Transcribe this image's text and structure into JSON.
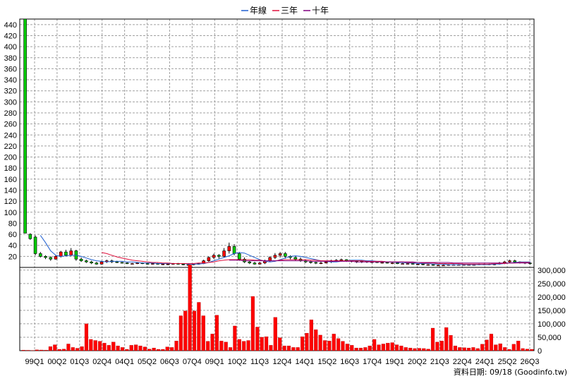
{
  "chart_data": [
    {
      "type": "candlestick",
      "title": "",
      "legend": {
        "placement": "top-center",
        "entries": [
          {
            "label": "年線",
            "color": "#1f5fd0"
          },
          {
            "label": "三年",
            "color": "#e0103c"
          },
          {
            "label": "十年",
            "color": "#800080"
          }
        ]
      },
      "x_ticks": [
        "99Q1",
        "00Q2",
        "01Q3",
        "02Q4",
        "04Q1",
        "05Q2",
        "06Q3",
        "07Q4",
        "09Q1",
        "10Q2",
        "11Q3",
        "12Q4",
        "14Q1",
        "15Q2",
        "16Q3",
        "17Q4",
        "19Q1",
        "20Q2",
        "21Q3",
        "22Q4",
        "24Q1",
        "25Q2",
        "26Q3"
      ],
      "y_ticks": [
        20,
        40,
        60,
        80,
        100,
        120,
        140,
        160,
        180,
        200,
        220,
        240,
        260,
        280,
        300,
        320,
        340,
        360,
        380,
        400,
        420,
        440
      ],
      "ylim": [
        0,
        450
      ],
      "grid": true,
      "colors": {
        "up": "#ff0000",
        "down": "#00cc00",
        "grid": "#a0a0a0"
      },
      "candles": [
        [
          450,
          62,
          450,
          62
        ],
        [
          60,
          52,
          62,
          50
        ],
        [
          55,
          25,
          58,
          22
        ],
        [
          25,
          20,
          28,
          18
        ],
        [
          20,
          18,
          22,
          15
        ],
        [
          18,
          15,
          20,
          12
        ],
        [
          15,
          20,
          22,
          14
        ],
        [
          20,
          28,
          30,
          18
        ],
        [
          28,
          22,
          32,
          20
        ],
        [
          22,
          30,
          35,
          20
        ],
        [
          30,
          15,
          32,
          12
        ],
        [
          15,
          12,
          18,
          10
        ],
        [
          12,
          10,
          14,
          8
        ],
        [
          10,
          8,
          12,
          6
        ],
        [
          8,
          6,
          10,
          5
        ],
        [
          6,
          10,
          12,
          5
        ],
        [
          10,
          12,
          14,
          8
        ],
        [
          12,
          10,
          14,
          8
        ],
        [
          10,
          9,
          12,
          8
        ],
        [
          9,
          8,
          10,
          7
        ],
        [
          8,
          7,
          9,
          6
        ],
        [
          7,
          7,
          8,
          6
        ],
        [
          7,
          8,
          9,
          6
        ],
        [
          8,
          7,
          9,
          6
        ],
        [
          7,
          6,
          8,
          5
        ],
        [
          6,
          7,
          8,
          5
        ],
        [
          7,
          6,
          8,
          5
        ],
        [
          6,
          6,
          7,
          5
        ],
        [
          6,
          6,
          7,
          5
        ],
        [
          6,
          7,
          8,
          5
        ],
        [
          7,
          6,
          8,
          5
        ],
        [
          6,
          5,
          7,
          4
        ],
        [
          5,
          5,
          6,
          4
        ],
        [
          5,
          6,
          7,
          4
        ],
        [
          6,
          7,
          8,
          5
        ],
        [
          7,
          12,
          14,
          6
        ],
        [
          12,
          18,
          20,
          10
        ],
        [
          18,
          22,
          25,
          15
        ],
        [
          22,
          20,
          24,
          16
        ],
        [
          20,
          30,
          35,
          18
        ],
        [
          30,
          38,
          45,
          25
        ],
        [
          38,
          25,
          42,
          22
        ],
        [
          25,
          15,
          28,
          12
        ],
        [
          15,
          10,
          18,
          8
        ],
        [
          10,
          8,
          12,
          6
        ],
        [
          8,
          6,
          10,
          5
        ],
        [
          6,
          8,
          10,
          5
        ],
        [
          8,
          12,
          14,
          6
        ],
        [
          12,
          18,
          20,
          10
        ],
        [
          18,
          22,
          26,
          15
        ],
        [
          22,
          25,
          28,
          18
        ],
        [
          25,
          20,
          28,
          16
        ],
        [
          20,
          18,
          22,
          14
        ],
        [
          18,
          15,
          20,
          12
        ],
        [
          15,
          12,
          18,
          10
        ],
        [
          12,
          10,
          14,
          8
        ],
        [
          10,
          9,
          12,
          7
        ],
        [
          9,
          8,
          10,
          6
        ],
        [
          8,
          8,
          10,
          6
        ],
        [
          8,
          10,
          12,
          7
        ],
        [
          10,
          12,
          14,
          8
        ],
        [
          12,
          13,
          15,
          10
        ],
        [
          13,
          14,
          16,
          11
        ],
        [
          14,
          12,
          15,
          10
        ],
        [
          12,
          11,
          13,
          9
        ],
        [
          11,
          10,
          12,
          8
        ],
        [
          10,
          11,
          12,
          8
        ],
        [
          11,
          10,
          12,
          8
        ],
        [
          10,
          10,
          11,
          8
        ],
        [
          10,
          9,
          11,
          8
        ],
        [
          9,
          9,
          10,
          7
        ],
        [
          9,
          8,
          10,
          7
        ],
        [
          8,
          8,
          9,
          6
        ],
        [
          8,
          7,
          9,
          6
        ],
        [
          7,
          7,
          8,
          6
        ],
        [
          7,
          7,
          8,
          6
        ],
        [
          7,
          6,
          8,
          5
        ],
        [
          6,
          6,
          7,
          5
        ],
        [
          6,
          5,
          7,
          4
        ],
        [
          5,
          5,
          6,
          4
        ],
        [
          5,
          4,
          6,
          3
        ],
        [
          4,
          4,
          5,
          3
        ],
        [
          4,
          4,
          5,
          3
        ],
        [
          4,
          5,
          6,
          3
        ],
        [
          5,
          5,
          6,
          4
        ],
        [
          5,
          5,
          6,
          4
        ],
        [
          5,
          5,
          6,
          4
        ],
        [
          5,
          5,
          6,
          4
        ],
        [
          5,
          5,
          6,
          4
        ],
        [
          5,
          6,
          7,
          4
        ],
        [
          6,
          6,
          7,
          4
        ],
        [
          6,
          5,
          7,
          4
        ],
        [
          5,
          6,
          7,
          4
        ],
        [
          6,
          8,
          10,
          5
        ],
        [
          8,
          10,
          12,
          6
        ],
        [
          10,
          12,
          14,
          8
        ],
        [
          12,
          10,
          14,
          8
        ],
        [
          10,
          9,
          11,
          7
        ],
        [
          9,
          8,
          10,
          6
        ],
        [
          8,
          7,
          9,
          5
        ]
      ],
      "ma": {
        "年線": [
          null,
          null,
          null,
          58,
          45,
          30,
          22,
          20,
          21,
          22,
          22,
          20,
          17,
          14,
          12,
          11,
          10,
          11,
          11,
          11,
          10,
          10,
          9,
          8,
          8,
          8,
          7,
          7,
          7,
          7,
          7,
          7,
          6,
          6,
          6,
          7,
          9,
          12,
          15,
          18,
          21,
          25,
          27,
          26,
          22,
          18,
          14,
          11,
          10,
          11,
          14,
          17,
          20,
          21,
          20,
          18,
          16,
          14,
          12,
          11,
          10,
          10,
          11,
          12,
          13,
          13,
          13,
          12,
          12,
          11,
          11,
          10,
          10,
          9,
          9,
          8,
          8,
          7,
          7,
          7,
          6,
          6,
          6,
          5,
          5,
          5,
          5,
          5,
          5,
          5,
          5,
          5,
          6,
          6,
          7,
          8,
          9,
          10,
          10,
          10,
          9
        ],
        "三年": [
          null,
          null,
          null,
          null,
          null,
          null,
          null,
          null,
          null,
          null,
          null,
          null,
          null,
          null,
          null,
          27,
          25,
          22,
          19,
          17,
          15,
          13,
          12,
          11,
          10,
          9,
          9,
          8,
          8,
          7,
          7,
          7,
          7,
          7,
          8,
          8,
          9,
          10,
          12,
          13,
          14,
          14,
          14,
          14,
          14,
          13,
          13,
          12,
          12,
          12,
          13,
          14,
          14,
          14,
          14,
          14,
          13,
          13,
          12,
          12,
          12,
          12,
          12,
          12,
          12,
          12,
          12,
          11,
          11,
          11,
          11,
          10,
          10,
          10,
          10,
          9,
          9,
          9,
          8,
          8,
          8,
          7,
          7,
          7,
          7,
          7,
          6,
          6,
          6,
          6,
          6,
          6,
          7,
          7,
          7,
          8,
          8,
          9,
          9,
          9
        ],
        "十年": [
          null,
          null,
          null,
          null,
          null,
          null,
          null,
          null,
          null,
          null,
          null,
          null,
          null,
          null,
          null,
          null,
          null,
          null,
          null,
          null,
          null,
          null,
          null,
          null,
          null,
          null,
          null,
          null,
          null,
          null,
          null,
          null,
          null,
          null,
          null,
          null,
          null,
          null,
          null,
          null,
          13,
          13,
          13,
          12,
          12,
          12,
          12,
          12,
          12,
          12,
          12,
          12,
          12,
          12,
          12,
          12,
          11,
          11,
          11,
          11,
          11,
          11,
          11,
          11,
          11,
          10,
          10,
          10,
          10,
          10,
          10,
          10,
          10,
          10,
          10,
          10,
          10,
          9,
          9,
          9,
          9,
          9,
          9,
          9,
          8,
          8,
          8,
          8,
          8,
          8,
          8,
          8,
          8,
          8,
          8,
          8,
          8,
          8,
          8,
          8
        ]
      }
    },
    {
      "type": "bar",
      "title": "",
      "y_ticks_labels": [
        "0",
        "50,000",
        "100,000",
        "150,000",
        "200,000",
        "250,000",
        "300,000"
      ],
      "ylim": [
        0,
        310000
      ],
      "color": "#ff0000",
      "values": [
        2000,
        1500,
        1000,
        3000,
        2500,
        2000,
        15000,
        22000,
        5000,
        6000,
        25000,
        12000,
        9000,
        15000,
        100000,
        42000,
        38000,
        35000,
        28000,
        20000,
        32000,
        18000,
        12000,
        5000,
        20000,
        22000,
        18000,
        14000,
        6000,
        10000,
        5000,
        5000,
        14000,
        12000,
        36000,
        130000,
        148000,
        320000,
        148000,
        180000,
        130000,
        35000,
        62000,
        132000,
        36000,
        32000,
        12000,
        92000,
        42000,
        35000,
        38000,
        202000,
        88000,
        50000,
        52000,
        20000,
        124000,
        48000,
        18000,
        18000,
        12000,
        12000,
        52000,
        65000,
        115000,
        78000,
        58000,
        38000,
        36000,
        62000,
        45000,
        35000,
        25000,
        20000,
        10000,
        10000,
        12000,
        18000,
        42000,
        22000,
        25000,
        28000,
        30000,
        22000,
        18000,
        12000,
        10000,
        8000,
        9000,
        8000,
        6000,
        84000,
        32000,
        36000,
        86000,
        57000,
        18000,
        12000,
        11000,
        10000,
        12000,
        8000,
        24000,
        40000,
        62000,
        22000,
        26000,
        12000,
        5000,
        24000,
        36000,
        8000,
        6000,
        5000
      ]
    }
  ],
  "footer": {
    "credit": "資料日期: 09/18  (Goodinfo.tw)"
  }
}
